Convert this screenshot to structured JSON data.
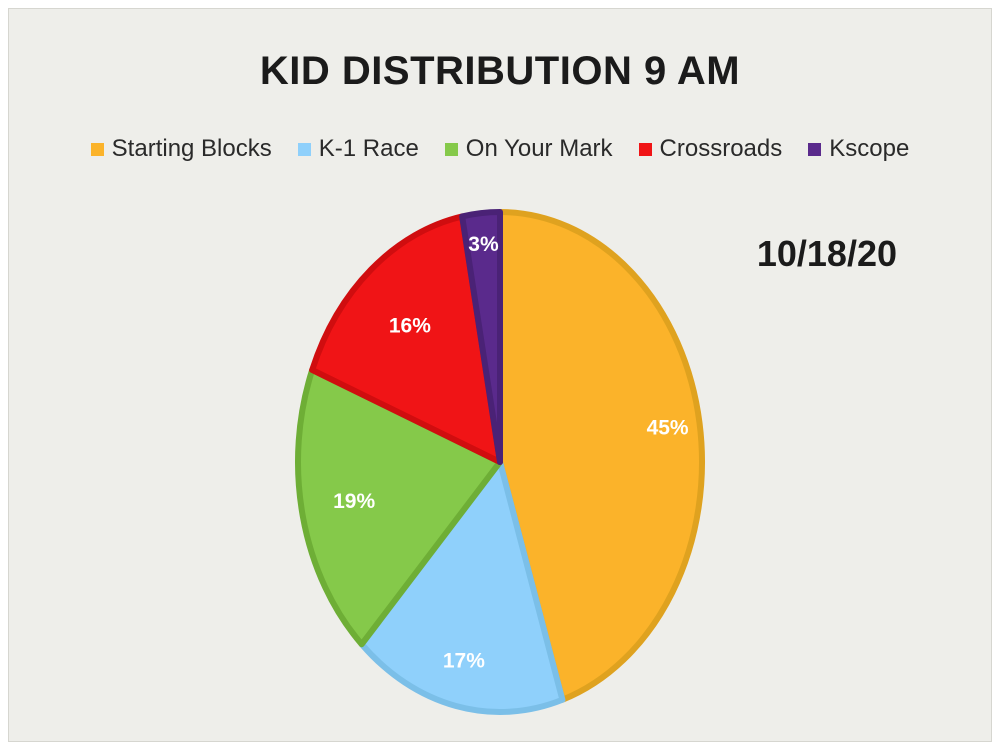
{
  "chart_data": {
    "type": "pie",
    "title": "KID DISTRIBUTION 9 AM",
    "annotation": "10/18/20",
    "legend_position": "top",
    "slices": [
      {
        "name": "Starting Blocks",
        "value": 45,
        "label": "45%",
        "color": "#fbb32a",
        "border": "#dfa21f"
      },
      {
        "name": "K-1 Race",
        "value": 17,
        "label": "17%",
        "color": "#8fd0fb",
        "border": "#7bbfe8"
      },
      {
        "name": "On Your Mark",
        "value": 19,
        "label": "19%",
        "color": "#85c94a",
        "border": "#6eae36"
      },
      {
        "name": "Crossroads",
        "value": 16,
        "label": "16%",
        "color": "#f01416",
        "border": "#d00d0f"
      },
      {
        "name": "Kscope",
        "value": 3,
        "label": "3%",
        "color": "#5a2a8c",
        "border": "#4a2276"
      }
    ]
  }
}
